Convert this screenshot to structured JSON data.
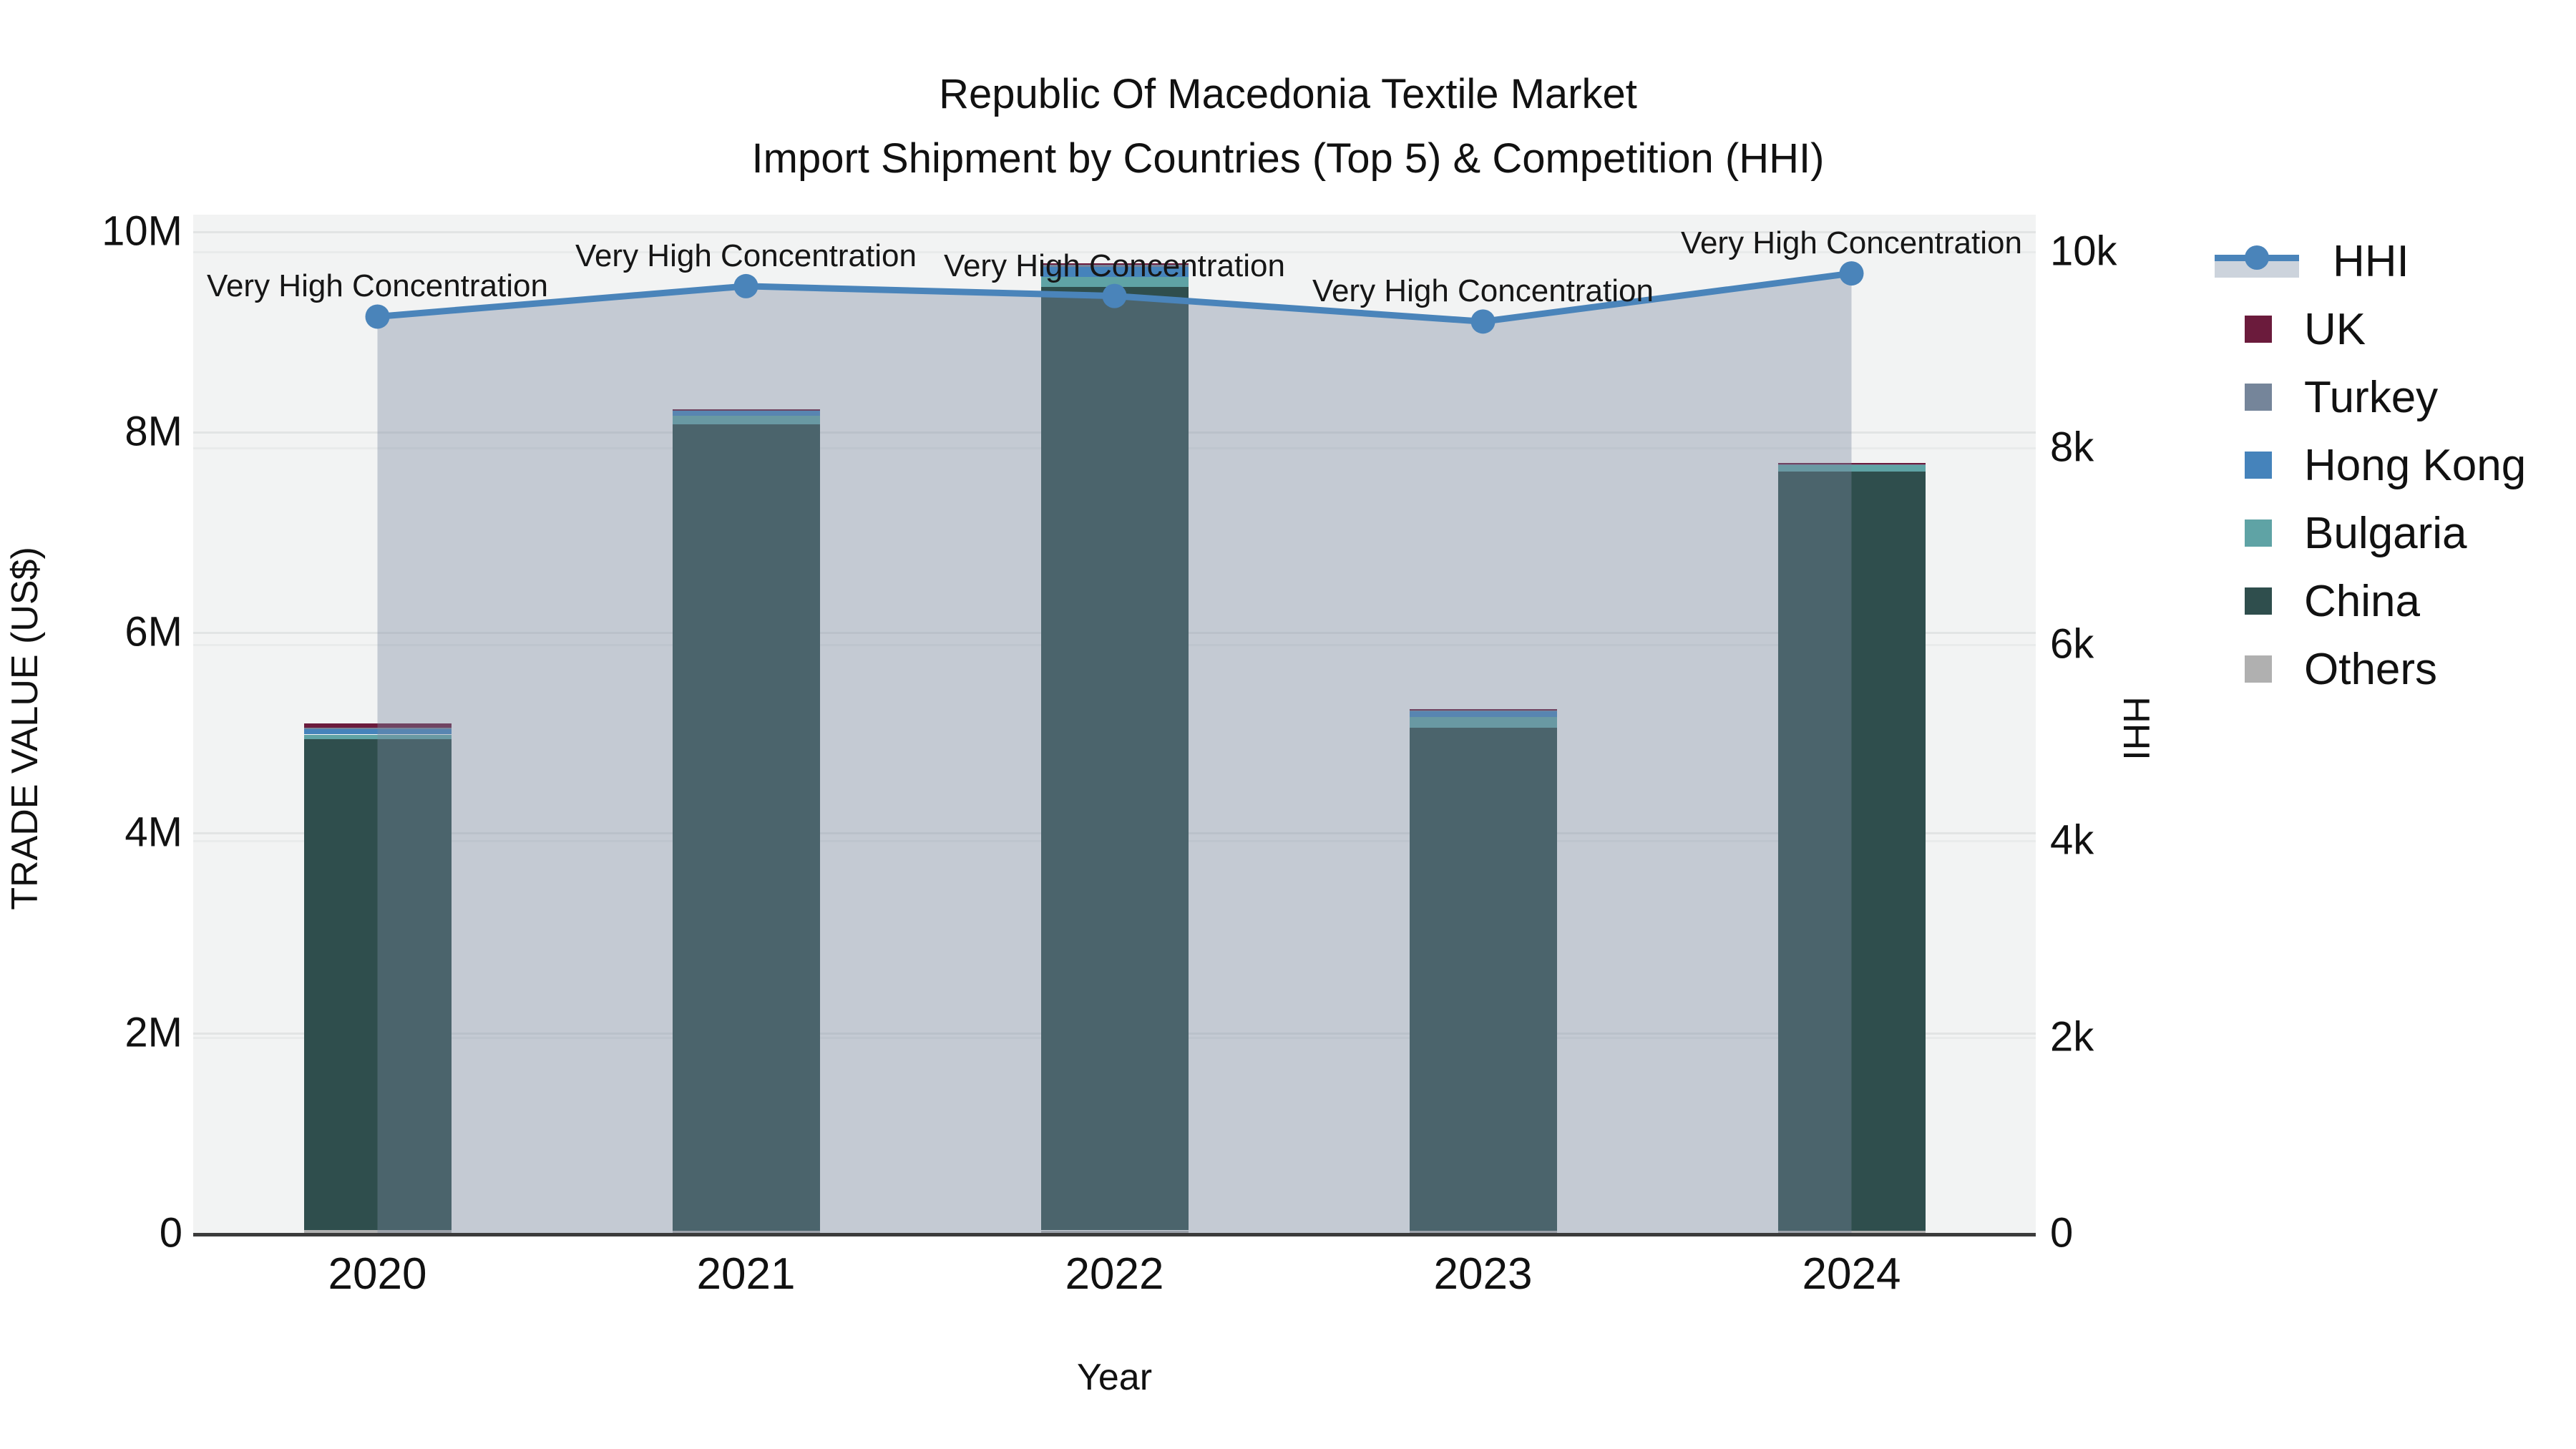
{
  "title": {
    "line1": "Republic Of Macedonia Textile Market",
    "line2": "Import Shipment by Countries (Top 5) & Competition (HHI)"
  },
  "chart_data": {
    "type": "combo-stacked-bar-line",
    "x": [
      "2020",
      "2021",
      "2022",
      "2023",
      "2024"
    ],
    "xlabel": "Year",
    "ylabel_left": "TRADE VALUE (US$)",
    "ylabel_right": "HHI",
    "unit": "million US$",
    "ylim_left_musd": [
      0,
      10
    ],
    "ylim_right_hhi": [
      0,
      10000
    ],
    "yticks_left": [
      "0",
      "2M",
      "4M",
      "6M",
      "8M",
      "10M"
    ],
    "yticks_right": [
      "0",
      "2k",
      "4k",
      "6k",
      "8k",
      "10k"
    ],
    "grid": true,
    "legend_position": "right",
    "stack_order_bottom_to_top": [
      "Others",
      "China",
      "Bulgaria",
      "Hong Kong",
      "Turkey",
      "UK"
    ],
    "series": [
      {
        "name": "UK",
        "color": "#6b1b3c",
        "values_musd": [
          0.04,
          0.003,
          0.005,
          0.003,
          0.003
        ]
      },
      {
        "name": "Turkey",
        "color": "#75859a",
        "values_musd": [
          0.008,
          0.004,
          0.03,
          0.004,
          0.004
        ]
      },
      {
        "name": "Hong Kong",
        "color": "#4583bb",
        "values_musd": [
          0.06,
          0.058,
          0.105,
          0.07,
          0.008
        ]
      },
      {
        "name": "Bulgaria",
        "color": "#5fa3a5",
        "values_musd": [
          0.045,
          0.086,
          0.095,
          0.11,
          0.07
        ]
      },
      {
        "name": "China",
        "color": "#2f4e4d",
        "values_musd": [
          4.9,
          8.05,
          9.42,
          5.02,
          7.58
        ]
      },
      {
        "name": "Others",
        "color": "#b0b0b0",
        "values_musd": [
          0.03,
          0.02,
          0.025,
          0.02,
          0.02
        ]
      }
    ],
    "bar_totals_musd": [
      5.08,
      8.22,
      9.68,
      5.23,
      7.69
    ],
    "line_series": {
      "name": "HHI",
      "color": "#4a84ba",
      "area_fill": "rgba(120,136,160,0.38)",
      "values": [
        9330,
        9640,
        9540,
        9280,
        9770
      ]
    },
    "annotations": [
      {
        "text": "Very High Concentration",
        "x_index": 0
      },
      {
        "text": "Very High Concentration",
        "x_index": 1
      },
      {
        "text": "Very High Concentration",
        "x_index": 2
      },
      {
        "text": "Very High Concentration",
        "x_index": 3
      },
      {
        "text": "Very High Concentration",
        "x_index": 4
      }
    ]
  },
  "legend": {
    "items": [
      {
        "label": "HHI",
        "type": "line"
      },
      {
        "label": "UK",
        "type": "square",
        "color": "#6b1b3c"
      },
      {
        "label": "Turkey",
        "type": "square",
        "color": "#75859a"
      },
      {
        "label": "Hong Kong",
        "type": "square",
        "color": "#4583bb"
      },
      {
        "label": "Bulgaria",
        "type": "square",
        "color": "#5fa3a5"
      },
      {
        "label": "China",
        "type": "square",
        "color": "#2f4e4d"
      },
      {
        "label": "Others",
        "type": "square",
        "color": "#b0b0b0"
      }
    ]
  },
  "colors": {
    "plot_background": "#f2f3f3",
    "grid_left": "#e2e4e4",
    "grid_right": "#e9ebeb",
    "axis_line": "#3b3b3b",
    "hhi_line": "#4a84ba",
    "hhi_area": "rgba(120,136,160,0.38)",
    "legend_hhi_fill_sample": "#ccd3dc"
  }
}
